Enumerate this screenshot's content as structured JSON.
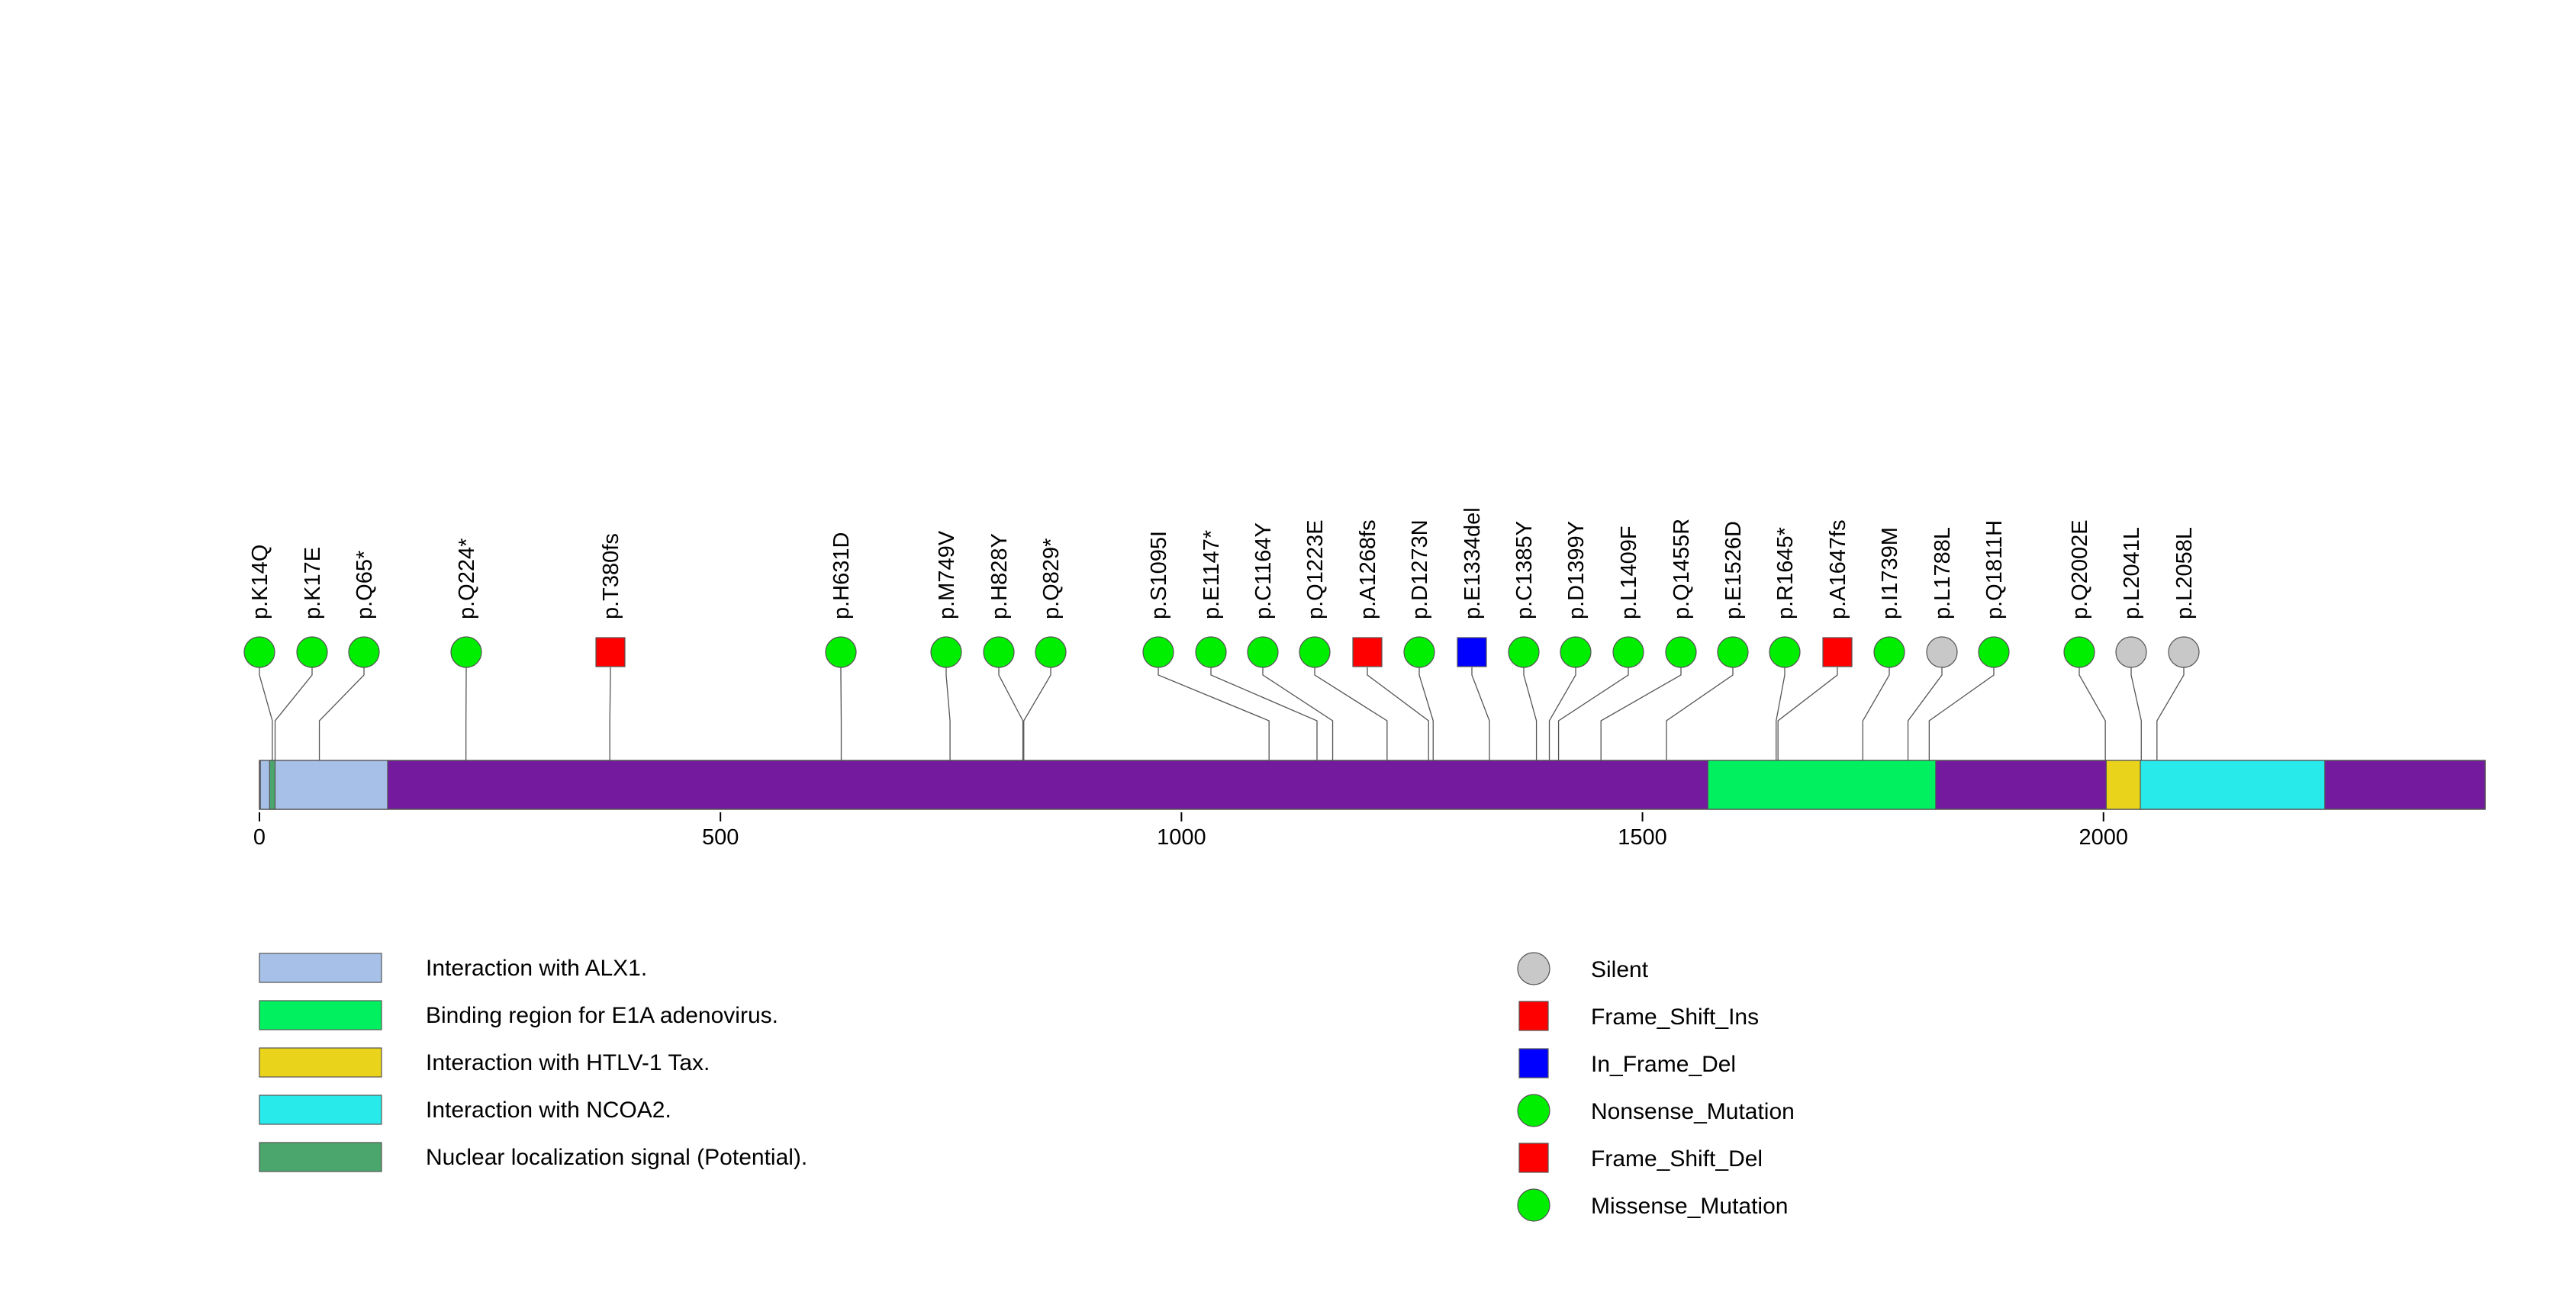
{
  "chart_data": {
    "type": "lollipop",
    "protein_length": 2414,
    "x_axis": {
      "range": [
        0,
        2414
      ],
      "ticks": [
        0,
        500,
        1000,
        1500,
        2000
      ],
      "tick_labels": [
        "0",
        "500",
        "1000",
        "1500",
        "2000"
      ]
    },
    "domains": [
      {
        "name": "Interaction with ALX1.",
        "start": 1,
        "end": 139,
        "color": "#a6c0e8"
      },
      {
        "name": "Nuclear localization signal (Potential).",
        "start": 11,
        "end": 17,
        "color": "#4aa66c"
      },
      {
        "name": "Binding region for E1A adenovirus.",
        "start": 1571,
        "end": 1818,
        "color": "#00f060"
      },
      {
        "name": "Interaction with HTLV-1 Tax.",
        "start": 2003,
        "end": 2042,
        "color": "#ead41b"
      },
      {
        "name": "Interaction with NCOA2.",
        "start": 2040,
        "end": 2240,
        "color": "#29eaea"
      }
    ],
    "backbone_color": "#731a9e",
    "mutations": [
      {
        "label": "p.K14Q",
        "pos": 14,
        "type": "Missense_Mutation"
      },
      {
        "label": "p.K17E",
        "pos": 17,
        "type": "Missense_Mutation"
      },
      {
        "label": "p.Q65*",
        "pos": 65,
        "type": "Nonsense_Mutation"
      },
      {
        "label": "p.Q224*",
        "pos": 224,
        "type": "Nonsense_Mutation"
      },
      {
        "label": "p.T380fs",
        "pos": 380,
        "type": "Frame_Shift_Del"
      },
      {
        "label": "p.H631D",
        "pos": 631,
        "type": "Missense_Mutation"
      },
      {
        "label": "p.M749V",
        "pos": 749,
        "type": "Missense_Mutation"
      },
      {
        "label": "p.H828Y",
        "pos": 828,
        "type": "Missense_Mutation"
      },
      {
        "label": "p.Q829*",
        "pos": 829,
        "type": "Nonsense_Mutation"
      },
      {
        "label": "p.S1095I",
        "pos": 1095,
        "type": "Missense_Mutation"
      },
      {
        "label": "p.E1147*",
        "pos": 1147,
        "type": "Nonsense_Mutation"
      },
      {
        "label": "p.C1164Y",
        "pos": 1164,
        "type": "Missense_Mutation"
      },
      {
        "label": "p.Q1223E",
        "pos": 1223,
        "type": "Missense_Mutation"
      },
      {
        "label": "p.A1268fs",
        "pos": 1268,
        "type": "Frame_Shift_Ins"
      },
      {
        "label": "p.D1273N",
        "pos": 1273,
        "type": "Missense_Mutation"
      },
      {
        "label": "p.E1334del",
        "pos": 1334,
        "type": "In_Frame_Del"
      },
      {
        "label": "p.C1385Y",
        "pos": 1385,
        "type": "Missense_Mutation"
      },
      {
        "label": "p.D1399Y",
        "pos": 1399,
        "type": "Missense_Mutation"
      },
      {
        "label": "p.L1409F",
        "pos": 1409,
        "type": "Missense_Mutation"
      },
      {
        "label": "p.Q1455R",
        "pos": 1455,
        "type": "Missense_Mutation"
      },
      {
        "label": "p.E1526D",
        "pos": 1526,
        "type": "Missense_Mutation"
      },
      {
        "label": "p.R1645*",
        "pos": 1645,
        "type": "Nonsense_Mutation"
      },
      {
        "label": "p.A1647fs",
        "pos": 1647,
        "type": "Frame_Shift_Del"
      },
      {
        "label": "p.I1739M",
        "pos": 1739,
        "type": "Missense_Mutation"
      },
      {
        "label": "p.L1788L",
        "pos": 1788,
        "type": "Silent"
      },
      {
        "label": "p.Q1811H",
        "pos": 1811,
        "type": "Missense_Mutation"
      },
      {
        "label": "p.Q2002E",
        "pos": 2002,
        "type": "Missense_Mutation"
      },
      {
        "label": "p.L2041L",
        "pos": 2041,
        "type": "Silent"
      },
      {
        "label": "p.L2058L",
        "pos": 2058,
        "type": "Silent"
      }
    ],
    "domain_legend": [
      {
        "label": "Interaction with ALX1.",
        "color": "#a6c0e8"
      },
      {
        "label": "Binding region for E1A adenovirus.",
        "color": "#00f060"
      },
      {
        "label": "Interaction with HTLV-1 Tax.",
        "color": "#ead41b"
      },
      {
        "label": "Interaction with NCOA2.",
        "color": "#29eaea"
      },
      {
        "label": "Nuclear localization signal (Potential).",
        "color": "#4aa66c"
      }
    ],
    "mutation_legend": [
      {
        "label": "Silent",
        "shape": "circle",
        "color": "#c8c8c8"
      },
      {
        "label": "Frame_Shift_Ins",
        "shape": "square",
        "color": "#ff0000"
      },
      {
        "label": "In_Frame_Del",
        "shape": "square",
        "color": "#0000ff"
      },
      {
        "label": "Nonsense_Mutation",
        "shape": "circle",
        "color": "#00ee00"
      },
      {
        "label": "Frame_Shift_Del",
        "shape": "square",
        "color": "#ff0000"
      },
      {
        "label": "Missense_Mutation",
        "shape": "circle",
        "color": "#00ee00"
      }
    ]
  }
}
